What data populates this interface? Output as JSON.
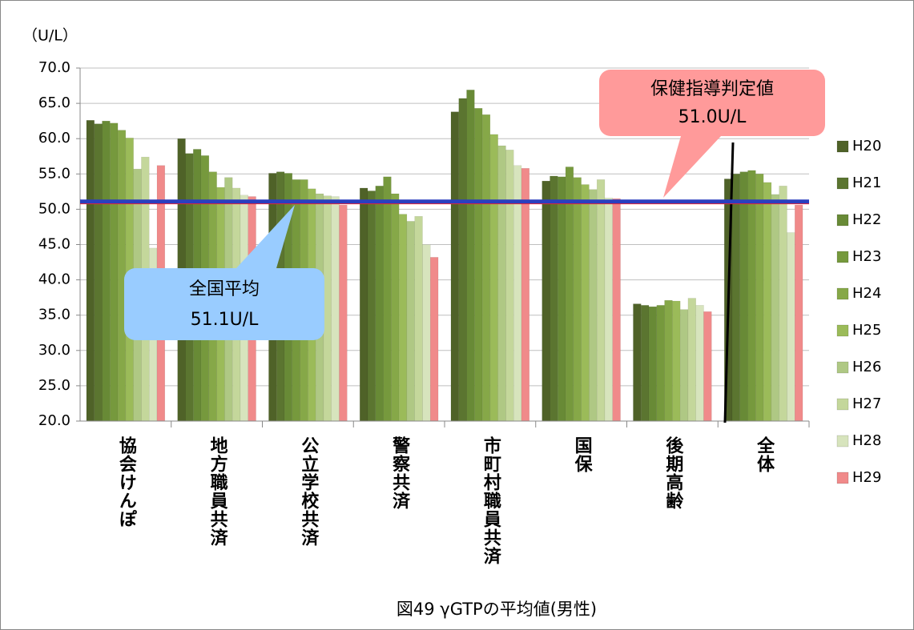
{
  "chart_data": {
    "type": "bar",
    "title": "図49 γGTPの平均値(男性)",
    "y_axis_label": "（U/L）",
    "categories": [
      "協会けんぽ",
      "地方職員共済",
      "公立学校共済",
      "警察共済",
      "市町村職員共済",
      "国保",
      "後期高齢",
      "全体"
    ],
    "series": [
      {
        "name": "H20",
        "color": "#4f6228",
        "values": [
          62.6,
          60.0,
          55.1,
          53.0,
          63.8,
          54.0,
          36.6,
          54.3
        ]
      },
      {
        "name": "H21",
        "color": "#5b7530",
        "values": [
          62.1,
          57.9,
          55.3,
          52.6,
          65.7,
          54.7,
          36.4,
          55.0
        ]
      },
      {
        "name": "H22",
        "color": "#688a36",
        "values": [
          62.5,
          58.5,
          55.1,
          53.3,
          66.9,
          54.6,
          36.2,
          55.3
        ]
      },
      {
        "name": "H23",
        "color": "#76993d",
        "values": [
          62.2,
          57.6,
          54.2,
          54.6,
          64.3,
          56.0,
          36.4,
          55.5
        ]
      },
      {
        "name": "H24",
        "color": "#86a848",
        "values": [
          61.2,
          55.3,
          54.2,
          52.2,
          63.4,
          54.5,
          37.1,
          55.0
        ]
      },
      {
        "name": "H25",
        "color": "#9bbb59",
        "values": [
          60.1,
          53.1,
          52.9,
          49.3,
          60.6,
          53.5,
          37.0,
          53.8
        ]
      },
      {
        "name": "H26",
        "color": "#afc884",
        "values": [
          55.7,
          54.5,
          52.2,
          48.3,
          59.0,
          52.8,
          35.8,
          52.1
        ]
      },
      {
        "name": "H27",
        "color": "#c4d79b",
        "values": [
          57.4,
          53.0,
          51.9,
          49.0,
          58.4,
          54.2,
          37.4,
          53.3
        ]
      },
      {
        "name": "H28",
        "color": "#d7e4bd",
        "values": [
          44.5,
          52.0,
          51.8,
          45.0,
          56.2,
          51.6,
          36.4,
          46.7
        ]
      },
      {
        "name": "H29",
        "color": "#f08a8a",
        "values": [
          56.2,
          51.8,
          50.6,
          43.2,
          55.8,
          51.5,
          35.5,
          50.6
        ]
      }
    ],
    "ylim": [
      20,
      70
    ],
    "yticks": [
      {
        "value": 20,
        "label": "20.0"
      },
      {
        "value": 25,
        "label": "25.0"
      },
      {
        "value": 30,
        "label": "30.0"
      },
      {
        "value": 35,
        "label": "35.0"
      },
      {
        "value": 40,
        "label": "40.0"
      },
      {
        "value": 45,
        "label": "45.0"
      },
      {
        "value": 50,
        "label": "50.0"
      },
      {
        "value": 55,
        "label": "55.0"
      },
      {
        "value": 60,
        "label": "60.0"
      },
      {
        "value": 65,
        "label": "65.0"
      },
      {
        "value": 70,
        "label": "70.0"
      }
    ],
    "grid": true,
    "legend": "right",
    "reference_lines": [
      {
        "name": "保健指導判定値",
        "value": 51.0,
        "label": "51.0U/L",
        "color": "#ff2020"
      },
      {
        "name": "全国平均",
        "value": 51.1,
        "label": "51.1U/L",
        "color": "#2a3fbf"
      }
    ]
  }
}
